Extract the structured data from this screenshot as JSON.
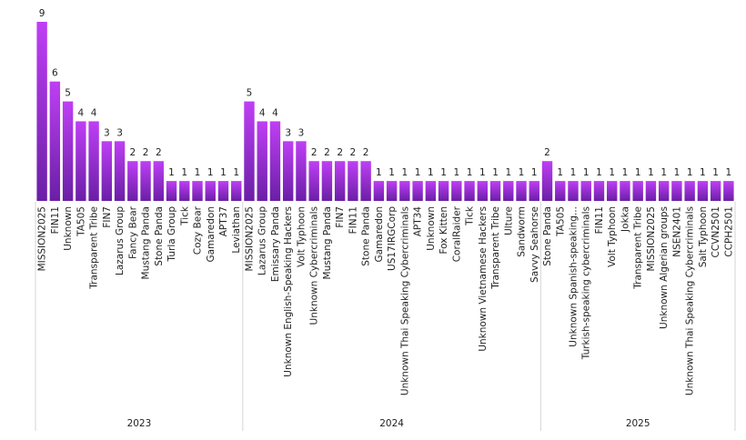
{
  "chart_data": {
    "type": "bar",
    "title": "",
    "xlabel": "",
    "ylabel": "",
    "ylim": [
      0,
      9
    ],
    "grid": false,
    "legend": "none",
    "colors": {
      "bar_top": "#bf3ff5",
      "bar_bottom": "#6a1fa6",
      "separator": "#d6d6d6",
      "text": "#222222"
    },
    "groups": [
      {
        "label": "2023",
        "categories": [
          "MISSION2025",
          "FIN11",
          "Unknown",
          "TA505",
          "Transparent Tribe",
          "FIN7",
          "Lazarus Group",
          "Fancy Bear",
          "Mustang Panda",
          "Stone Panda",
          "Turla Group",
          "Tick",
          "Cozy Bear",
          "Gamaredon",
          "APT37",
          "Leviathan"
        ],
        "values": [
          9,
          6,
          5,
          4,
          4,
          3,
          3,
          2,
          2,
          2,
          1,
          1,
          1,
          1,
          1,
          1
        ]
      },
      {
        "label": "2024",
        "categories": [
          "MISSION2025",
          "Lazarus Group",
          "Emissary Panda",
          "Unknown English-Speaking Hackers",
          "Volt Typhoon",
          "Unknown Cybercriminals",
          "Mustang Panda",
          "FIN7",
          "FIN11",
          "Stone Panda",
          "Gamaredon",
          "US17IRGCorp",
          "Unknown Thai Speaking Cybercriminals",
          "APT34",
          "Unknown",
          "Fox Kitten",
          "CoralRaider",
          "Tick",
          "Unknown Vietnamese Hackers",
          "Transparent Tribe",
          "Ulture",
          "Sandworm",
          "Savvy Seahorse"
        ],
        "values": [
          5,
          4,
          4,
          3,
          3,
          2,
          2,
          2,
          2,
          2,
          1,
          1,
          1,
          1,
          1,
          1,
          1,
          1,
          1,
          1,
          1,
          1,
          1
        ]
      },
      {
        "label": "2025",
        "categories": [
          "Stone Panda",
          "TA505",
          "Unknown Spanish-speaking...",
          "Turkish-speaking cybercriminals",
          "FIN11",
          "Volt Typhoon",
          "Jokka",
          "Transparent Tribe",
          "MISSION2025",
          "Unknown Algerian groups",
          "NSEN2401",
          "Unknown Thai Speaking Cybercriminals",
          "Salt Typhoon",
          "CCVN2501",
          "CCPH2501"
        ],
        "values": [
          2,
          1,
          1,
          1,
          1,
          1,
          1,
          1,
          1,
          1,
          1,
          1,
          1,
          1,
          1
        ]
      }
    ]
  }
}
